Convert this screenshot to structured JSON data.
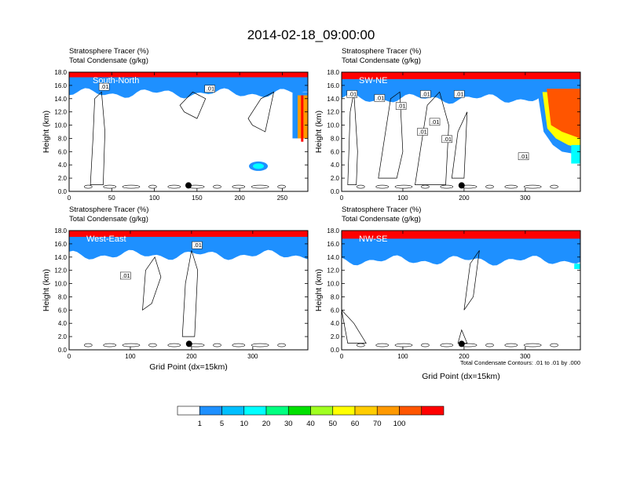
{
  "title": "2014-02-18_09:00:00",
  "chart_data": [
    {
      "type": "heatmap",
      "panel_label": "South-North",
      "subtitle_1": "Stratosphere Tracer   (%)",
      "subtitle_2": "Total Condensate   (g/kg)",
      "ylabel": "Height (km)",
      "xlabel": "",
      "xlim": [
        0,
        280
      ],
      "ylim": [
        0,
        18
      ],
      "x_ticks": [
        "0",
        "50",
        "100",
        "150",
        "200",
        "250"
      ],
      "y_ticks": [
        "0.0",
        "2.0",
        "4.0",
        "6.0",
        "8.0",
        "10.0",
        "12.0",
        "14.0",
        "16.0",
        "18.0"
      ],
      "contour_labels": [
        ".01",
        ".01"
      ],
      "marker_x": 140,
      "tracer_base_km": 15.8,
      "note": ""
    },
    {
      "type": "heatmap",
      "panel_label": "SW-NE",
      "subtitle_1": "Stratosphere Tracer   (%)",
      "subtitle_2": "Total Condensate   (g/kg)",
      "ylabel": "Height (km)",
      "xlabel": "",
      "xlim": [
        0,
        390
      ],
      "ylim": [
        0,
        18
      ],
      "x_ticks": [
        "0",
        "100",
        "200",
        "300"
      ],
      "y_ticks": [
        "0.0",
        "2.0",
        "4.0",
        "6.0",
        "8.0",
        "10.0",
        "12.0",
        "14.0",
        "16.0",
        "18.0"
      ],
      "contour_labels": [
        ".01",
        ".01",
        ".01",
        ".01",
        ".01",
        ".01",
        ".01",
        ".01",
        ".01"
      ],
      "marker_x": 196,
      "tracer_base_km": 15.0,
      "note": ""
    },
    {
      "type": "heatmap",
      "panel_label": "West-East",
      "subtitle_1": "Stratosphere Tracer   (%)",
      "subtitle_2": "Total Condensate   (g/kg)",
      "ylabel": "Height (km)",
      "xlabel": "Grid Point (dx=15km)",
      "xlim": [
        0,
        390
      ],
      "ylim": [
        0,
        18
      ],
      "x_ticks": [
        "0",
        "100",
        "200",
        "300"
      ],
      "y_ticks": [
        "0.0",
        "2.0",
        "4.0",
        "6.0",
        "8.0",
        "10.0",
        "12.0",
        "14.0",
        "16.0",
        "18.0"
      ],
      "contour_labels": [
        ".01",
        ".01"
      ],
      "marker_x": 196,
      "tracer_base_km": 15.3,
      "note": ""
    },
    {
      "type": "heatmap",
      "panel_label": "NW-SE",
      "subtitle_1": "Stratosphere Tracer   (%)",
      "subtitle_2": "Total Condensate   (g/kg)",
      "ylabel": "Height (km)",
      "xlabel": "Grid Point (dx=15km)",
      "xlim": [
        0,
        390
      ],
      "ylim": [
        0,
        18
      ],
      "x_ticks": [
        "0",
        "100",
        "200",
        "300"
      ],
      "y_ticks": [
        "0.0",
        "2.0",
        "4.0",
        "6.0",
        "8.0",
        "10.0",
        "12.0",
        "14.0",
        "16.0",
        "18.0"
      ],
      "contour_labels": [],
      "marker_x": 196,
      "tracer_base_km": 14.5,
      "note": "Total Condensate Contours: .01 to .01 by .000"
    }
  ],
  "colorbar": {
    "labels": [
      "1",
      "5",
      "10",
      "20",
      "30",
      "40",
      "50",
      "60",
      "70",
      "100"
    ],
    "colors": [
      "#ffffff",
      "#1e90ff",
      "#00bfff",
      "#00ffff",
      "#00ff80",
      "#00e000",
      "#a0ff20",
      "#ffff00",
      "#ffcc00",
      "#ff9900",
      "#ff5500",
      "#ff0000"
    ]
  }
}
